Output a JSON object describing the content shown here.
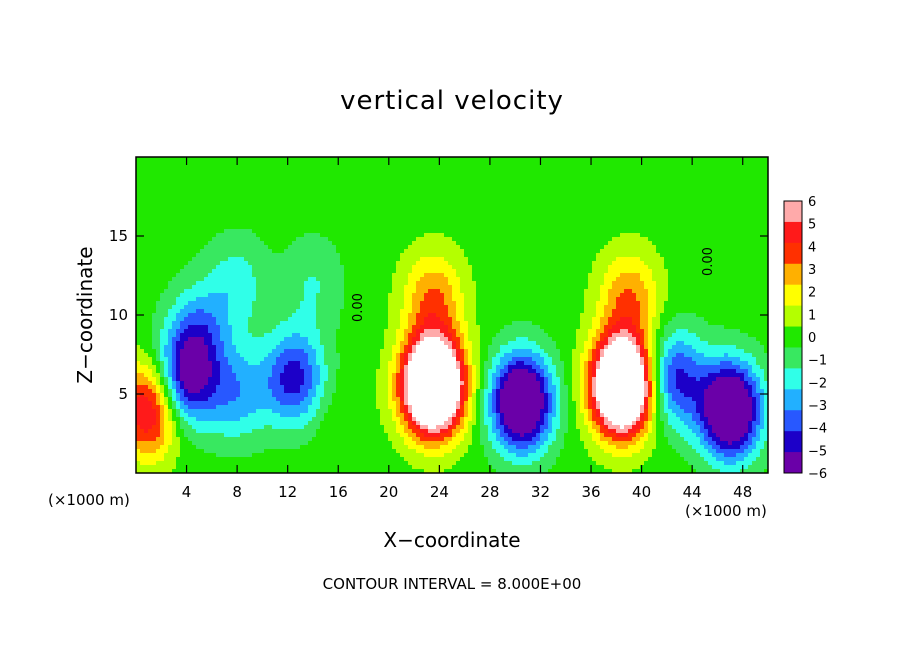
{
  "chart_data": {
    "type": "heatmap",
    "title": "vertical velocity",
    "xlabel": "X−coordinate",
    "ylabel": "Z−coordinate",
    "x_unit_left": "(×1000 m)",
    "x_unit_right": "(×1000 m)",
    "xlim": [
      0,
      50
    ],
    "ylim": [
      0,
      20
    ],
    "x_ticks": [
      "4",
      "8",
      "12",
      "16",
      "20",
      "24",
      "28",
      "32",
      "36",
      "40",
      "44",
      "48"
    ],
    "y_ticks": [
      "5",
      "10",
      "15"
    ],
    "colorbar": {
      "ticks": [
        "6",
        "5",
        "4",
        "3",
        "2",
        "1",
        "0",
        "−1",
        "−2",
        "−3",
        "−4",
        "−5",
        "−6"
      ],
      "range": [
        -6,
        6
      ]
    },
    "contour_labels": [
      "0.00",
      "0.00"
    ],
    "annotation": "CONTOUR INTERVAL = 8.000E+00",
    "features": [
      {
        "x": 1,
        "z": 4,
        "w": 6
      },
      {
        "x": 4,
        "z": 6,
        "w": -6
      },
      {
        "x": 8,
        "z": 5,
        "w": -3
      },
      {
        "x": 12.5,
        "z": 6,
        "w": -5
      },
      {
        "x": 16,
        "z": 3,
        "w": 0.5
      },
      {
        "x": 23.5,
        "z": 5.5,
        "w": 14
      },
      {
        "x": 23.5,
        "z": 11,
        "w": 3.5
      },
      {
        "x": 30.5,
        "z": 4.5,
        "w": -9
      },
      {
        "x": 38.5,
        "z": 5.5,
        "w": 14
      },
      {
        "x": 39,
        "z": 11,
        "w": 3.5
      },
      {
        "x": 42.5,
        "z": 6,
        "w": -5
      },
      {
        "x": 47,
        "z": 4,
        "w": -9
      },
      {
        "x": 8,
        "z": 12,
        "w": -2
      },
      {
        "x": 14,
        "z": 12,
        "w": -1.5
      },
      {
        "x": 5,
        "z": 9,
        "w": -3
      }
    ]
  },
  "colors": {
    "scale": [
      "#6a00a8",
      "#1c00c8",
      "#2858ff",
      "#22b0ff",
      "#30ffe8",
      "#38e860",
      "#20e800",
      "#b4ff00",
      "#ffff00",
      "#ffb000",
      "#ff3000",
      "#ff1a1a",
      "#ffaaaa"
    ],
    "peak": "#ffffff"
  }
}
